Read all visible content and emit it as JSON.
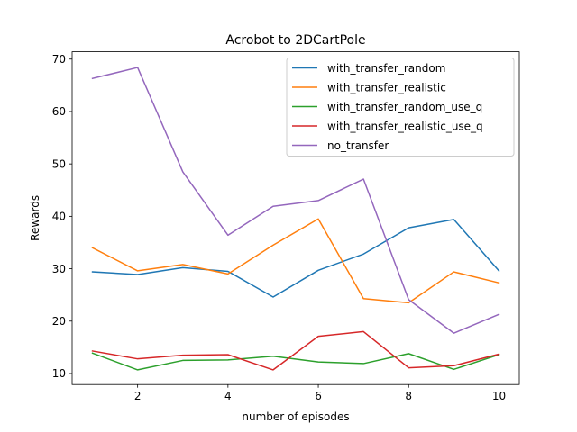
{
  "chart_data": {
    "type": "line",
    "title": "Acrobot to 2DCartPole",
    "xlabel": "number of episodes",
    "ylabel": "Rewards",
    "x": [
      1,
      2,
      3,
      4,
      5,
      6,
      7,
      8,
      9,
      10
    ],
    "xlim": [
      0.55,
      10.45
    ],
    "ylim": [
      7.9,
      71.4
    ],
    "xticks": [
      2,
      4,
      6,
      8,
      10
    ],
    "yticks": [
      10,
      20,
      30,
      40,
      50,
      60,
      70
    ],
    "grid": false,
    "legend_position": "top-right",
    "series": [
      {
        "name": "with_transfer_random",
        "color": "#1f77b4",
        "values": [
          29.4,
          28.9,
          30.2,
          29.5,
          24.6,
          29.7,
          32.8,
          37.8,
          39.4,
          29.6
        ]
      },
      {
        "name": "with_transfer_realistic",
        "color": "#ff7f0e",
        "values": [
          34.0,
          29.6,
          30.8,
          29.0,
          34.5,
          39.5,
          24.3,
          23.5,
          29.4,
          27.3
        ]
      },
      {
        "name": "with_transfer_random_use_q",
        "color": "#2ca02c",
        "values": [
          13.9,
          10.7,
          12.5,
          12.6,
          13.3,
          12.2,
          11.9,
          13.8,
          10.8,
          13.6
        ]
      },
      {
        "name": "with_transfer_realistic_use_q",
        "color": "#d62728",
        "values": [
          14.3,
          12.8,
          13.5,
          13.6,
          10.7,
          17.1,
          18.0,
          11.1,
          11.5,
          13.7
        ]
      },
      {
        "name": "no_transfer",
        "color": "#9467bd",
        "values": [
          66.3,
          68.4,
          48.5,
          36.4,
          41.9,
          43.0,
          47.1,
          24.1,
          17.7,
          21.3
        ]
      }
    ]
  }
}
